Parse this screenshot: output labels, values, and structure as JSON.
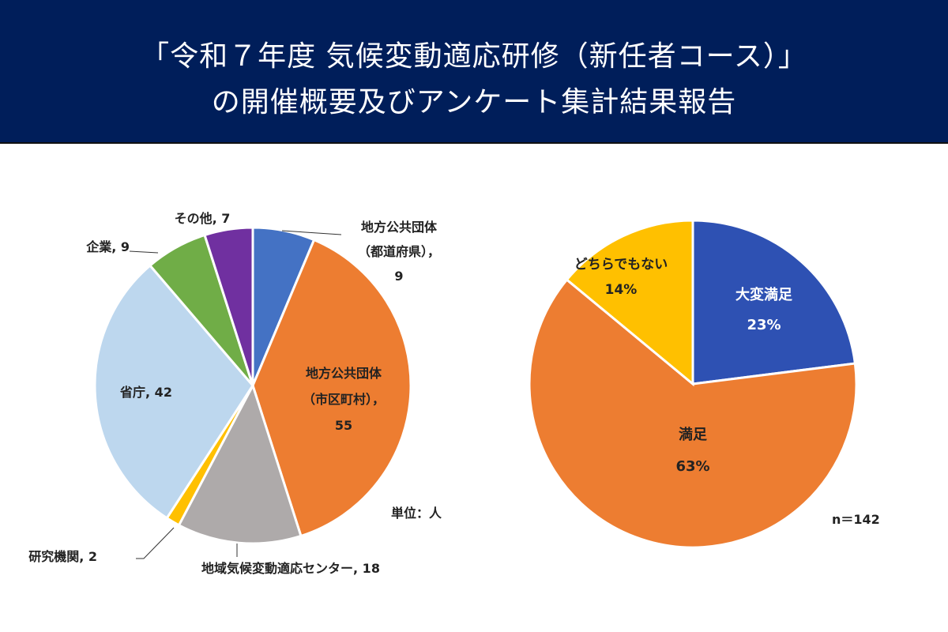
{
  "header": {
    "title_line1": "「令和７年度 気候変動適応研修（新任者コース）」",
    "title_line2": "の開催概要及びアンケート集計結果報告"
  },
  "chart_data": [
    {
      "type": "pie",
      "title": "",
      "unit_label": "単位：人",
      "start": "top",
      "direction": "clockwise",
      "slices": [
        {
          "label": "地方公共団体（都道府県）",
          "value": 9,
          "display": [
            "地方公共団体",
            "（都道府県），",
            "9"
          ],
          "color": "#4472C4"
        },
        {
          "label": "地方公共団体（市区町村）",
          "value": 55,
          "display": [
            "地方公共団体",
            "（市区町村），",
            "55"
          ],
          "color": "#ED7D31"
        },
        {
          "label": "地域気候変動適応センター",
          "value": 18,
          "display": [
            "地域気候変動適応センター, 18"
          ],
          "color": "#AEAAAA"
        },
        {
          "label": "研究機関",
          "value": 2,
          "display": [
            "研究機関, 2"
          ],
          "color": "#FFC000"
        },
        {
          "label": "省庁",
          "value": 42,
          "display": [
            "省庁, 42"
          ],
          "color": "#BDD7EE"
        },
        {
          "label": "企業",
          "value": 9,
          "display": [
            "企業, 9"
          ],
          "color": "#70AD47"
        },
        {
          "label": "その他",
          "value": 7,
          "display": [
            "その他, 7"
          ],
          "color": "#7030A0"
        }
      ]
    },
    {
      "type": "pie",
      "title": "",
      "n_label": "n＝142",
      "start": "top",
      "direction": "clockwise",
      "slices": [
        {
          "label": "大変満足",
          "value": 23,
          "display": [
            "大変満足",
            "23%"
          ],
          "color": "#2E51B3"
        },
        {
          "label": "満足",
          "value": 63,
          "display": [
            "満足",
            "63%"
          ],
          "color": "#ED7D31"
        },
        {
          "label": "どちらでもない",
          "value": 14,
          "display": [
            "どちらでもない",
            "14%"
          ],
          "color": "#FFC000"
        }
      ]
    }
  ]
}
